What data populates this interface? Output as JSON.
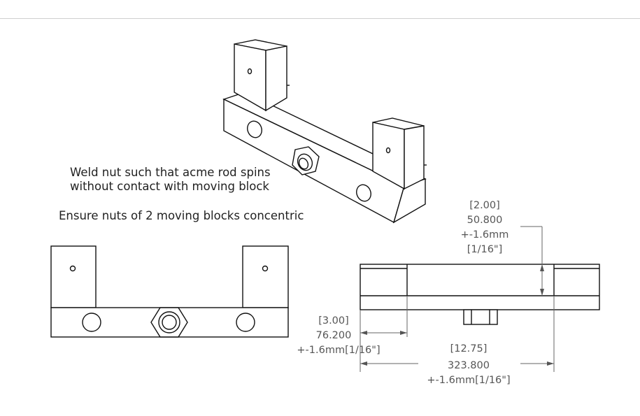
{
  "notes": {
    "weld_line1": "Weld nut such that acme rod spins",
    "weld_line2": "without contact with moving block",
    "concentric": "Ensure nuts of 2 moving blocks concentric"
  },
  "dimensions": {
    "height": {
      "inch": "[2.00]",
      "mm": "50.800",
      "tol": "+-1.6mm",
      "frac": "[1/16\"]"
    },
    "inset": {
      "inch": "[3.00]",
      "mm": "76.200",
      "tol": "+-1.6mm[1/16\"]"
    },
    "width": {
      "inch": "[12.75]",
      "mm": "323.800",
      "tol": "+-1.6mm[1/16\"]"
    }
  }
}
